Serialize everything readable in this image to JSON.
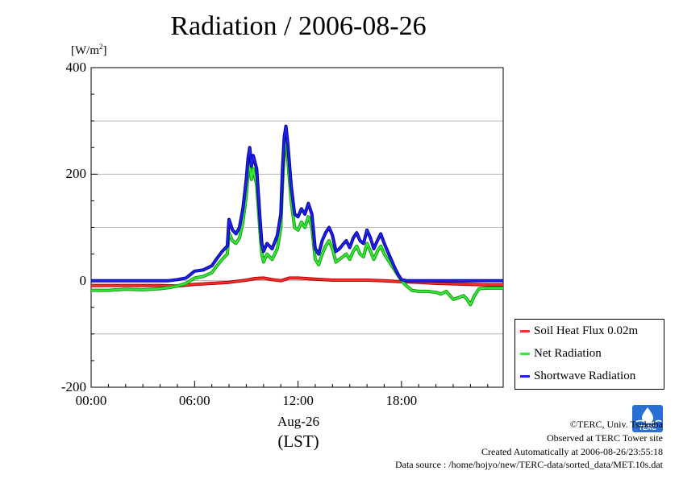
{
  "header": {
    "title": "Radiation / 2006-08-26"
  },
  "axes": {
    "y_unit": "[W/m",
    "y_unit_sup": "2",
    "y_unit_close": "]",
    "y_ticks": [
      {
        "value": 400,
        "label": "400"
      },
      {
        "value": 200,
        "label": "200"
      },
      {
        "value": 0,
        "label": "0"
      },
      {
        "value": -200,
        "label": "-200"
      }
    ],
    "x_ticks": [
      {
        "hour": 0,
        "label": "00:00"
      },
      {
        "hour": 6,
        "label": "06:00"
      },
      {
        "hour": 12,
        "label": "12:00"
      },
      {
        "hour": 18,
        "label": "18:00"
      }
    ],
    "x_date": "Aug-26",
    "x_label": "(LST)"
  },
  "legend": {
    "items": [
      {
        "label": "Soil Heat Flux 0.02m",
        "color": "#ff3030"
      },
      {
        "label": "Net Radiation",
        "color": "#33ee33"
      },
      {
        "label": "Shortwave Radiation",
        "color": "#2222ee"
      }
    ]
  },
  "credits": {
    "line1": "©TERC, Univ. Tsukuba",
    "line2": "Observed at TERC Tower site",
    "line3": "Created Automatically at 2006-08-26/23:55:18",
    "line4": "Data source : /home/hojyo/new/TERC-data/sorted_data/MET.10s.dat",
    "logo_text": "TERC"
  },
  "chart_data": {
    "type": "line",
    "xlim": [
      0,
      23.9
    ],
    "ylim": [
      -200,
      400
    ],
    "grid": true,
    "legend_position": "right",
    "series": [
      {
        "name": "Soil Heat Flux 0.02m",
        "color": "#ff3030",
        "x": [
          0,
          2,
          4,
          5,
          6,
          7,
          8,
          9,
          9.5,
          10,
          10.5,
          11,
          11.5,
          12,
          13,
          14,
          15,
          16,
          17,
          18,
          19,
          20,
          21,
          22,
          23,
          23.9
        ],
        "y": [
          -9,
          -9,
          -9,
          -10,
          -7,
          -5,
          -3,
          1,
          4,
          5,
          2,
          0,
          5,
          5,
          3,
          1,
          1,
          1,
          0,
          -2,
          -3,
          -5,
          -6,
          -7,
          -8,
          -8
        ]
      },
      {
        "name": "Net Radiation",
        "color": "#33ee33",
        "x": [
          0,
          1,
          2,
          3,
          4,
          4.5,
          5,
          5.5,
          6,
          6.5,
          7,
          7.3,
          7.6,
          7.9,
          8,
          8.2,
          8.4,
          8.6,
          8.8,
          9,
          9.1,
          9.2,
          9.3,
          9.4,
          9.6,
          9.8,
          9.9,
          10,
          10.2,
          10.5,
          10.8,
          11,
          11.1,
          11.2,
          11.3,
          11.4,
          11.5,
          11.6,
          11.8,
          12,
          12.2,
          12.4,
          12.6,
          12.8,
          13,
          13.2,
          13.4,
          13.6,
          13.8,
          14,
          14.2,
          14.4,
          14.6,
          14.8,
          15,
          15.2,
          15.4,
          15.6,
          15.8,
          16,
          16.2,
          16.4,
          16.6,
          16.8,
          17,
          17.2,
          17.4,
          17.6,
          17.8,
          18,
          18.3,
          18.6,
          19,
          19.5,
          20,
          20.3,
          20.6,
          21,
          21.3,
          21.6,
          21.8,
          22,
          22.2,
          22.5,
          23,
          23.9
        ],
        "y": [
          -18,
          -18,
          -16,
          -17,
          -15,
          -13,
          -10,
          -5,
          5,
          8,
          15,
          28,
          40,
          50,
          90,
          75,
          70,
          80,
          110,
          160,
          200,
          220,
          190,
          210,
          180,
          90,
          50,
          35,
          50,
          40,
          60,
          100,
          180,
          240,
          265,
          230,
          190,
          150,
          100,
          95,
          110,
          100,
          120,
          100,
          40,
          30,
          50,
          65,
          75,
          60,
          35,
          40,
          45,
          50,
          40,
          55,
          65,
          50,
          45,
          70,
          55,
          40,
          55,
          65,
          50,
          40,
          30,
          20,
          10,
          0,
          -10,
          -18,
          -20,
          -20,
          -22,
          -25,
          -20,
          -35,
          -32,
          -28,
          -35,
          -45,
          -30,
          -15,
          -14,
          -14
        ]
      },
      {
        "name": "Shortwave Radiation",
        "color": "#2222ee",
        "x": [
          0,
          1,
          2,
          3,
          4,
          4.5,
          5,
          5.5,
          6,
          6.5,
          7,
          7.3,
          7.6,
          7.9,
          8,
          8.2,
          8.4,
          8.6,
          8.8,
          9,
          9.1,
          9.2,
          9.3,
          9.4,
          9.6,
          9.8,
          9.9,
          10,
          10.2,
          10.5,
          10.8,
          11,
          11.1,
          11.2,
          11.3,
          11.4,
          11.5,
          11.6,
          11.8,
          12,
          12.2,
          12.4,
          12.6,
          12.8,
          13,
          13.2,
          13.4,
          13.6,
          13.8,
          14,
          14.2,
          14.4,
          14.6,
          14.8,
          15,
          15.2,
          15.4,
          15.6,
          15.8,
          16,
          16.2,
          16.4,
          16.6,
          16.8,
          17,
          17.2,
          17.4,
          17.6,
          17.8,
          18,
          18.3,
          18.6,
          19,
          19.5,
          20,
          20.3,
          20.6,
          21,
          21.3,
          21.6,
          21.8,
          22,
          22.2,
          22.5,
          23,
          23.9
        ],
        "y": [
          0,
          0,
          0,
          0,
          0,
          0,
          2,
          5,
          18,
          20,
          28,
          42,
          55,
          65,
          115,
          95,
          88,
          100,
          135,
          190,
          230,
          250,
          215,
          235,
          210,
          115,
          70,
          55,
          70,
          60,
          85,
          125,
          210,
          270,
          290,
          260,
          220,
          180,
          125,
          120,
          135,
          125,
          145,
          125,
          60,
          50,
          75,
          90,
          100,
          85,
          55,
          60,
          68,
          75,
          62,
          80,
          90,
          75,
          70,
          95,
          80,
          60,
          75,
          88,
          70,
          55,
          40,
          25,
          12,
          2,
          0,
          0,
          0,
          0,
          0,
          0,
          0,
          0,
          0,
          0,
          0,
          0,
          0,
          0,
          0,
          0
        ]
      }
    ]
  }
}
